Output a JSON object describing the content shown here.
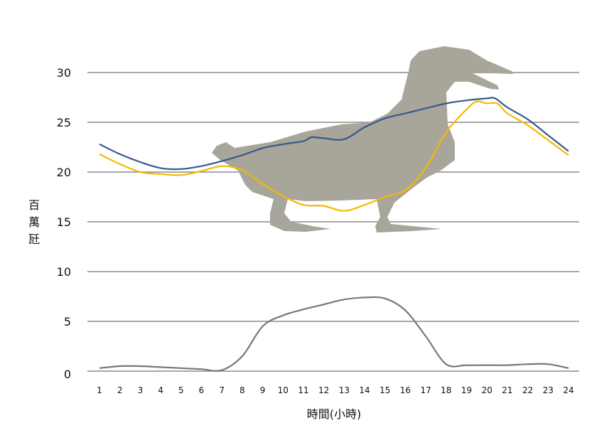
{
  "chart_data": {
    "type": "line",
    "title": "",
    "xlabel": "時間(小時)",
    "ylabel": "百萬瓩",
    "ylabel_chars": [
      "百",
      "萬",
      "瓩"
    ],
    "xlim": [
      1,
      24
    ],
    "ylim": [
      0,
      30
    ],
    "yticks": [
      0,
      5,
      10,
      15,
      20,
      25,
      30
    ],
    "xticks": [
      1,
      2,
      3,
      4,
      5,
      6,
      7,
      8,
      9,
      10,
      11,
      12,
      13,
      14,
      15,
      16,
      17,
      18,
      19,
      20,
      21,
      22,
      23,
      24
    ],
    "grid": true,
    "legend": "none",
    "background_image": "duck-silhouette",
    "series": [
      {
        "name": "blue",
        "color": "#345a8a",
        "x": [
          1,
          2,
          3,
          4,
          5,
          6,
          7,
          8,
          9,
          10,
          11,
          11.4,
          12,
          13,
          14,
          15,
          16,
          17,
          18,
          19,
          20,
          20.4,
          21,
          22,
          23,
          24
        ],
        "y": [
          22.8,
          21.8,
          21.0,
          20.4,
          20.3,
          20.6,
          21.1,
          21.7,
          22.4,
          22.8,
          23.1,
          23.5,
          23.4,
          23.3,
          24.5,
          25.4,
          25.9,
          26.4,
          26.9,
          27.2,
          27.4,
          27.4,
          26.5,
          25.3,
          23.7,
          22.1
        ]
      },
      {
        "name": "yellow",
        "color": "#f5b800",
        "x": [
          1,
          2,
          3,
          4,
          5,
          6,
          7,
          8,
          9,
          10,
          11,
          12,
          13,
          14,
          15,
          16,
          17,
          18,
          19,
          19.5,
          20,
          20.5,
          21,
          22,
          23,
          24
        ],
        "y": [
          21.8,
          20.8,
          20.0,
          19.8,
          19.7,
          20.1,
          20.6,
          20.2,
          18.8,
          17.6,
          16.7,
          16.6,
          16.1,
          16.7,
          17.5,
          18.2,
          20.4,
          24.0,
          26.3,
          27.1,
          26.9,
          26.9,
          25.9,
          24.7,
          23.2,
          21.7
        ]
      },
      {
        "name": "gray",
        "color": "#777777",
        "x": [
          1,
          2,
          3,
          4,
          5,
          6,
          7,
          8,
          9,
          10,
          11,
          12,
          13,
          14,
          15,
          16,
          17,
          18,
          19,
          20,
          21,
          22,
          23,
          24
        ],
        "y": [
          0.3,
          0.5,
          0.5,
          0.4,
          0.3,
          0.2,
          0.1,
          1.5,
          4.5,
          5.6,
          6.2,
          6.7,
          7.2,
          7.4,
          7.3,
          6.1,
          3.5,
          0.7,
          0.6,
          0.6,
          0.6,
          0.7,
          0.7,
          0.3
        ]
      }
    ]
  }
}
